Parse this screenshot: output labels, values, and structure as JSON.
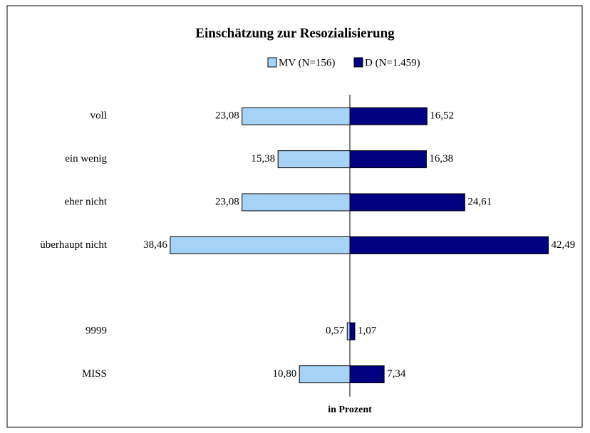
{
  "chart_data": {
    "type": "butterfly-bar",
    "title": "Einschätzung zur Resozialisierung",
    "x_label": "in Prozent",
    "categories": [
      "voll",
      "ein wenig",
      "eher nicht",
      "überhaupt nicht",
      null,
      "9999",
      "MISS"
    ],
    "series": [
      {
        "name": "MV (N=156)",
        "color": "#a6d2f5",
        "side": "left",
        "values": [
          23.08,
          15.38,
          23.08,
          38.46,
          null,
          0.57,
          10.8
        ],
        "value_labels": [
          "23,08",
          "15,38",
          "23,08",
          "38,46",
          null,
          "0,57",
          "10,80"
        ]
      },
      {
        "name": "D (N=1.459)",
        "color": "#000080",
        "side": "right",
        "values": [
          16.52,
          16.38,
          24.61,
          42.49,
          null,
          1.07,
          7.34
        ],
        "value_labels": [
          "16,52",
          "16,38",
          "24,61",
          "42,49",
          null,
          "1,07",
          "7,34"
        ]
      }
    ],
    "xlim": [
      -45,
      45
    ]
  }
}
